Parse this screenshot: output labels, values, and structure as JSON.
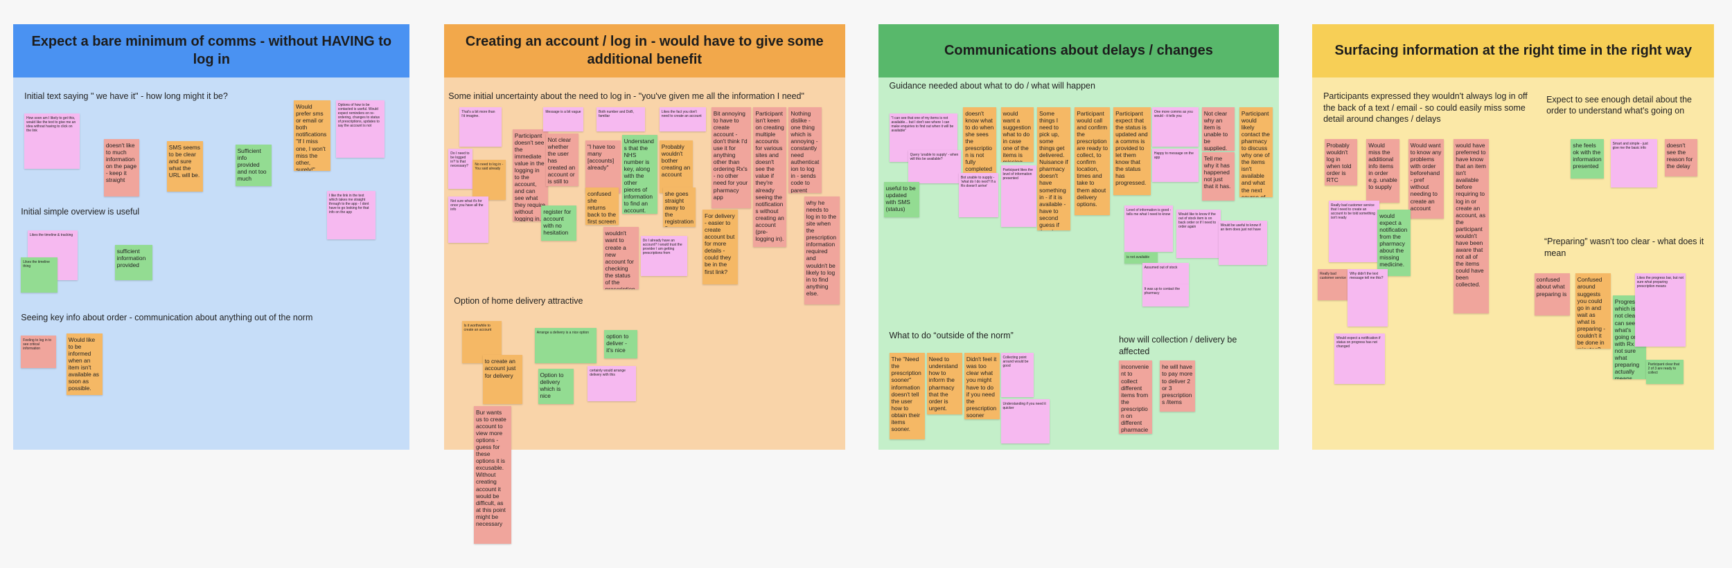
{
  "boards": [
    {
      "title": "Expect a bare minimum of comms - without HAVING to log in",
      "head_color": "#4a92f2",
      "body_color": "#c6ddf8",
      "headings": [
        "Initial text saying \" we have it\" - how long might it be?",
        "Initial simple overview is useful",
        "Seeing key info about order - communication about anything out of the norm"
      ],
      "notes": [
        {
          "text": "How soon am I likely to get this, would like the text to give me an idea without having to click on the link",
          "color": "#f6b9f0"
        },
        {
          "text": "doesn't like to much information on the page - keep it straight",
          "color": "#f0a59c"
        },
        {
          "text": "SMS seems to be clear and sure what the URL will be.",
          "color": "#f5b865"
        },
        {
          "text": "Sufficient info provided and not too much",
          "color": "#93dc92"
        },
        {
          "text": "Would prefer sms or email or both notifications \"If I miss one, I won't miss the other, surely!\"",
          "color": "#f5b865"
        },
        {
          "text": "Options of how to be contacted is useful. Would expect reminders on re-ordering, changes to status of prescriptions, updates to say the account is not",
          "color": "#f6b9f0"
        },
        {
          "text": "I like the link in the text which takes me straight through to the app - I dont have to go looking for that info on the app",
          "color": "#f6b9f0"
        },
        {
          "text": "Likes the timeline & tracking",
          "color": "#f6b9f0"
        },
        {
          "text": "Likes the timeline thing",
          "color": "#93dc92"
        },
        {
          "text": "sufficient information provided",
          "color": "#93dc92"
        },
        {
          "text": "Feeling to log in to see critical information",
          "color": "#f0a59c"
        },
        {
          "text": "Would like to be informed when an item isn't available as soon as possible.",
          "color": "#f5b865"
        }
      ]
    },
    {
      "title": "Creating an account / log in - would have to give some additional benefit",
      "head_color": "#f2a84b",
      "body_color": "#f9d4a9",
      "headings": [
        "Some initial uncertainty about the need to log in - \"you've given me all the information I need\"",
        "Option of home delivery attractive"
      ],
      "notes": [
        {
          "text": "That's a bit more than I'd imagine.",
          "color": "#f6b9f0"
        },
        {
          "text": "Do I need to be logged in? Is that necessary?",
          "color": "#f6b9f0"
        },
        {
          "text": "No need to log in - You said already",
          "color": "#f5b865"
        },
        {
          "text": "Participant doesn't see the immediate value in the logging in to the account, and can see what they require without logging in.",
          "color": "#f0a59c"
        },
        {
          "text": "Not sure what it's for once you have all the info",
          "color": "#f6b9f0"
        },
        {
          "text": "Not clear whether the user has created an account or is still to create one.",
          "color": "#f0a59c"
        },
        {
          "text": "Message is a bit vague",
          "color": "#f6b9f0"
        },
        {
          "text": "\"I have too many [accounts] already\"",
          "color": "#f0a59c"
        },
        {
          "text": "Both number and DoB, familiar",
          "color": "#f6b9f0"
        },
        {
          "text": "Understands that the NHS number is key, along with the other pieces of information to find an account.",
          "color": "#93dc92"
        },
        {
          "text": "Probably wouldn't bother creating an account",
          "color": "#f5b865"
        },
        {
          "text": "Likes the fact you don't need to create an account",
          "color": "#f6b9f0"
        },
        {
          "text": "Bit annoying to have to create account - don't think I'd use it for anything other than ordering Rx's - no other need for your pharmacy app",
          "color": "#f0a59c"
        },
        {
          "text": "Participant isn't keen on creating multiple accounts for various sites and doesn't see the value if they're already seeing the notifications without creating an account (pre-logging in).",
          "color": "#f0a59c"
        },
        {
          "text": "Nothing dislike - one thing which is annoying - constantly need authenticat ion to log in - sends code to parent instead",
          "color": "#f0a59c"
        },
        {
          "text": "confused she returns back to the first screen",
          "color": "#f5b865"
        },
        {
          "text": "register for account with no hesitation",
          "color": "#93dc92"
        },
        {
          "text": "she goes straight away to the registration flow",
          "color": "#f5b865"
        },
        {
          "text": "wouldn't want to create a new account for checking the status of the prescription",
          "color": "#f0a59c"
        },
        {
          "text": "Do I already have an account? I would trust the provider I am getting prescriptions from",
          "color": "#f6b9f0"
        },
        {
          "text": "For delivery - easier to create account but for more details - could they be in the first link?",
          "color": "#f5b865"
        },
        {
          "text": "why he needs to log in to the site when the prescription information required and wouldn't be likely to log in to find anything else.",
          "color": "#f0a59c"
        },
        {
          "text": "Is it worthwhile to create an account",
          "color": "#f5b865"
        },
        {
          "text": "Arrange a delivery is a nice option",
          "color": "#93dc92"
        },
        {
          "text": "option to deliver - it's nice",
          "color": "#93dc92"
        },
        {
          "text": "to create an account just for delivery",
          "color": "#f5b865"
        },
        {
          "text": "Option to delivery which is nice",
          "color": "#93dc92"
        },
        {
          "text": "certainly would arrange delivery with this",
          "color": "#f6b9f0"
        },
        {
          "text": "Bur wants us to create account to view more options - guess for these options it is excusable. Without creating account it would be difficult, as at this point might be necessary",
          "color": "#f0a59c"
        }
      ]
    },
    {
      "title": "Communications about delays / changes",
      "head_color": "#58b86b",
      "body_color": "#c4efc9",
      "headings": [
        "Guidance needed about what to do / what will happen",
        "What to do “outside of the norm”",
        "how will collection / delivery be affected"
      ],
      "notes": [
        {
          "text": "\"I can see that one of my items is not available... but I don't see where I can make enquiries to find out when it will be available\"",
          "color": "#f6b9f0"
        },
        {
          "text": "Query 'unable to supply' - when will this be available?",
          "color": "#f6b9f0"
        },
        {
          "text": "useful to be updated with SMS (status)",
          "color": "#93dc92"
        },
        {
          "text": "doesn't know what to do when she sees the prescription is not fully completed (2/3)",
          "color": "#f5b865"
        },
        {
          "text": "Bot unable to supply - 'what do I do next? If a Rx doesn't arrive'",
          "color": "#f6b9f0"
        },
        {
          "text": "would want a suggestion what to do in case one of the items is missing",
          "color": "#f5b865"
        },
        {
          "text": "Some things I need to pick up, some things get delivered. Nuisance if pharmacy doesn't have something in - if it is available - have to second guess if they have it",
          "color": "#f5b865"
        },
        {
          "text": "Participant likes the level of information presented",
          "color": "#f6b9f0"
        },
        {
          "text": "Participant would call and confirm the prescription are ready to collect, to confirm location, times and take to them about delivery options.",
          "color": "#f5b865"
        },
        {
          "text": "Participant expect that the status is updated and a comms is provided to let them know that the status has progressed.",
          "color": "#f5b865"
        },
        {
          "text": "One more comms as you would - it tells you",
          "color": "#f6b9f0"
        },
        {
          "text": "Happy to message on the app",
          "color": "#f6b9f0"
        },
        {
          "text": "Not clear why an item is unable to be supplied.",
          "color": "#f0a59c"
        },
        {
          "text": "Tell me why it has happened not just that it has.",
          "color": "#f0a59c"
        },
        {
          "text": "Participant would likely contact the pharmacy to discuss why one of the items isn't available and what the next course of action would be.",
          "color": "#f5b865"
        },
        {
          "text": "Level of information is good - tells me what I need to know",
          "color": "#f6b9f0"
        },
        {
          "text": "Would like to know if the out of stock item is on back order or if I need to order again",
          "color": "#f6b9f0"
        },
        {
          "text": "Would be useful to know if an item does just not have",
          "color": "#f6b9f0"
        },
        {
          "text": "is not available",
          "color": "#93dc92"
        },
        {
          "text": "Assumed out of stock",
          "color": "#f6b9f0"
        },
        {
          "text": "It was up to contact the pharmacy",
          "color": "#f6b9f0"
        },
        {
          "text": "The \"Need the prescription sooner\" information doesn't tell the user how to obtain their items sooner.",
          "color": "#f5b865"
        },
        {
          "text": "Need to understand how to inform the pharmacy that the order is urgent.",
          "color": "#f5b865"
        },
        {
          "text": "Didn't feel it was too clear what you might have to do if you need the prescription sooner",
          "color": "#f5b865"
        },
        {
          "text": "Collecting point around would be good",
          "color": "#f6b9f0"
        },
        {
          "text": "Understanding if you need it quicker",
          "color": "#f6b9f0"
        },
        {
          "text": "inconvenient to collect different items from the prescription on different pharmacies",
          "color": "#f0a59c"
        },
        {
          "text": "he will have to pay more to deliver 2 or 3 prescriptions /items",
          "color": "#f0a59c"
        }
      ]
    },
    {
      "title": "Surfacing information at the right time in the right way",
      "head_color": "#f7cf56",
      "body_color": "#fbe8a7",
      "headings": [
        "Participants expressed they wouldn't always log in off the back of a text / email - so could easily miss some detail around changes / delays",
        "Expect to see enough detail about the order to understand what's going on",
        "“Preparing” wasn't too clear - what does it mean"
      ],
      "notes": [
        {
          "text": "Probably wouldn't log in when told order is RTC",
          "color": "#f0a59c"
        },
        {
          "text": "Would miss the additional info items in order e.g. unable to supply",
          "color": "#f0a59c"
        },
        {
          "text": "Would want to know any problems with order beforehand - pref without needing to create an account",
          "color": "#f0a59c"
        },
        {
          "text": "would have preferred to have know that an item isn't available before requiring to log in or create an account, as the participant wouldn't have been aware that not all of the items could have been collected.",
          "color": "#f0a59c"
        },
        {
          "text": "Really bad customer service that I need to create an account to be told something isn't ready",
          "color": "#f6b9f0"
        },
        {
          "text": "would expect a notification from the pharmacy about the missing medicine.",
          "color": "#93dc92"
        },
        {
          "text": "Really bad customer service",
          "color": "#f0a59c"
        },
        {
          "text": "Why didn't the text message tell me this?",
          "color": "#f6b9f0"
        },
        {
          "text": "she feels ok with the information presented",
          "color": "#93dc92"
        },
        {
          "text": "Smart and simple - just give me the basic info",
          "color": "#f6b9f0"
        },
        {
          "text": "doesn't see the reason for the delay",
          "color": "#f0a59c"
        },
        {
          "text": "Would expect a notification if status on progress has not changed",
          "color": "#f6b9f0"
        },
        {
          "text": "confused about what preparing is",
          "color": "#f0a59c"
        },
        {
          "text": "Confused around suggests you could go in and wait as what is preparing - couldn't it be done in minutes?",
          "color": "#f5b865"
        },
        {
          "text": "Progress which is not clear - can see what's going on with Rx but not sure what preparing actually means",
          "color": "#93dc92"
        },
        {
          "text": "Likes the progress bar, but not sure what preparing prescription means",
          "color": "#f6b9f0"
        },
        {
          "text": "Participant clear that 2 of 3 are ready to collect",
          "color": "#93dc92"
        }
      ]
    }
  ]
}
